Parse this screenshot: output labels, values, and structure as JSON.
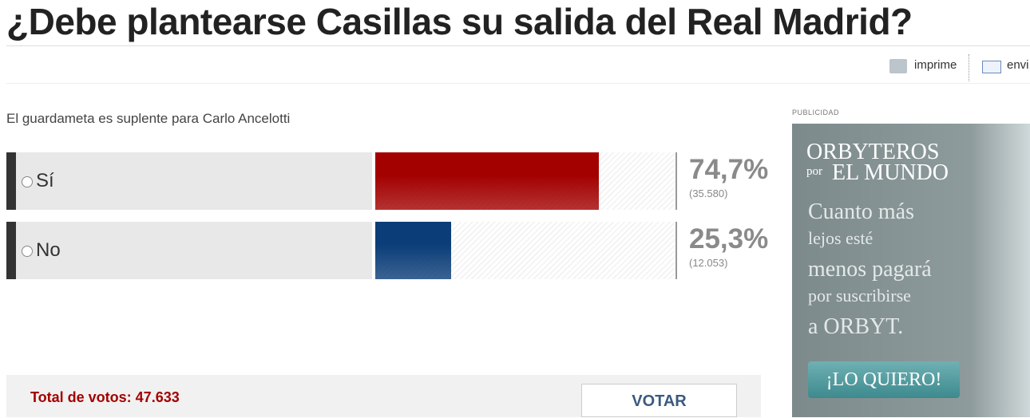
{
  "header": {
    "title": "¿Debe plantearse Casillas su salida del Real Madrid?",
    "tools": [
      "imprime",
      "envi"
    ]
  },
  "poll": {
    "question": "El guardameta es suplente para Carlo Ancelotti",
    "options": [
      {
        "label": "Sí",
        "percent": 74.7,
        "percent_label": "74,7%",
        "votes": 35580,
        "votes_label": "(35.580)",
        "color": "#a30000"
      },
      {
        "label": "No",
        "percent": 25.3,
        "percent_label": "25,3%",
        "votes": 12053,
        "votes_label": "(12.053)",
        "color": "#0b3d78"
      }
    ],
    "total_label": "Total de votos: 47.633",
    "button": "VOTAR"
  },
  "ad": {
    "label": "PUBLICIDAD",
    "brand": [
      "ORBYTEROS",
      "por",
      "EL MUNDO"
    ],
    "lines": [
      "Cuanto más",
      "lejos esté",
      "menos pagará",
      "por suscribirse",
      "a ORBYT."
    ],
    "button": "¡LO QUIERO!"
  }
}
